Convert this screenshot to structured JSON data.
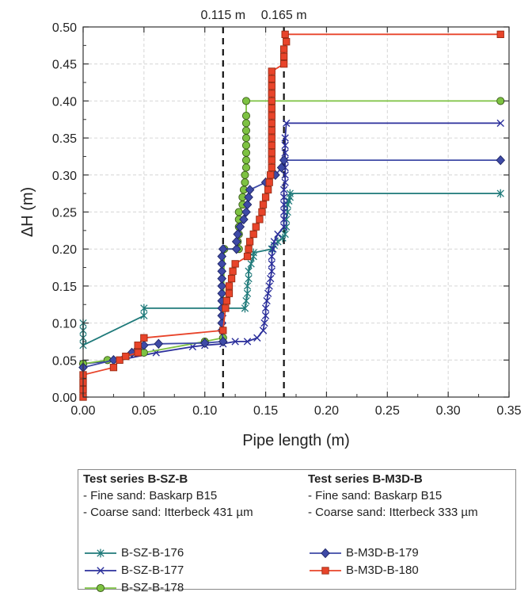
{
  "chart_data": {
    "type": "line",
    "xlabel": "Pipe length (m)",
    "ylabel": "ΔH (m)",
    "xlim": [
      0.0,
      0.35
    ],
    "ylim": [
      0.0,
      0.5
    ],
    "x_ticks": [
      "0.00",
      "0.05",
      "0.10",
      "0.15",
      "0.20",
      "0.25",
      "0.30",
      "0.35"
    ],
    "y_ticks": [
      "0.00",
      "0.05",
      "0.10",
      "0.15",
      "0.20",
      "0.25",
      "0.30",
      "0.35",
      "0.40",
      "0.45",
      "0.50"
    ],
    "grid": true,
    "reference_lines": [
      {
        "x": 0.115,
        "label": "0.115 m"
      },
      {
        "x": 0.165,
        "label": "0.165 m"
      }
    ],
    "series": [
      {
        "name": "B-SZ-B-176",
        "color": "#1f7a7a",
        "marker": "asterisk",
        "points": [
          [
            0,
            0.1
          ],
          [
            0,
            0.09
          ],
          [
            0,
            0.08
          ],
          [
            0,
            0.07
          ],
          [
            0.05,
            0.11
          ],
          [
            0.05,
            0.12
          ],
          [
            0.133,
            0.12
          ],
          [
            0.134,
            0.13
          ],
          [
            0.135,
            0.14
          ],
          [
            0.135,
            0.15
          ],
          [
            0.136,
            0.16
          ],
          [
            0.136,
            0.17
          ],
          [
            0.138,
            0.18
          ],
          [
            0.14,
            0.19
          ],
          [
            0.14,
            0.195
          ],
          [
            0.155,
            0.2
          ],
          [
            0.157,
            0.205
          ],
          [
            0.16,
            0.21
          ],
          [
            0.164,
            0.215
          ],
          [
            0.166,
            0.22
          ],
          [
            0.167,
            0.23
          ],
          [
            0.167,
            0.24
          ],
          [
            0.168,
            0.25
          ],
          [
            0.168,
            0.26
          ],
          [
            0.169,
            0.265
          ],
          [
            0.17,
            0.27
          ],
          [
            0.17,
            0.275
          ],
          [
            0.343,
            0.275
          ]
        ]
      },
      {
        "name": "B-SZ-B-177",
        "color": "#2b2f9b",
        "marker": "x",
        "points": [
          [
            0,
            0.045
          ],
          [
            0.03,
            0.05
          ],
          [
            0.06,
            0.06
          ],
          [
            0.09,
            0.068
          ],
          [
            0.1,
            0.07
          ],
          [
            0.115,
            0.072
          ],
          [
            0.125,
            0.075
          ],
          [
            0.135,
            0.075
          ],
          [
            0.143,
            0.08
          ],
          [
            0.148,
            0.09
          ],
          [
            0.149,
            0.1
          ],
          [
            0.15,
            0.11
          ],
          [
            0.15,
            0.12
          ],
          [
            0.151,
            0.13
          ],
          [
            0.152,
            0.14
          ],
          [
            0.153,
            0.15
          ],
          [
            0.154,
            0.16
          ],
          [
            0.155,
            0.17
          ],
          [
            0.155,
            0.18
          ],
          [
            0.155,
            0.19
          ],
          [
            0.156,
            0.2
          ],
          [
            0.157,
            0.21
          ],
          [
            0.16,
            0.22
          ],
          [
            0.165,
            0.23
          ],
          [
            0.165,
            0.24
          ],
          [
            0.165,
            0.25
          ],
          [
            0.165,
            0.26
          ],
          [
            0.165,
            0.27
          ],
          [
            0.165,
            0.28
          ],
          [
            0.166,
            0.29
          ],
          [
            0.166,
            0.3
          ],
          [
            0.166,
            0.31
          ],
          [
            0.166,
            0.32
          ],
          [
            0.166,
            0.33
          ],
          [
            0.166,
            0.34
          ],
          [
            0.166,
            0.35
          ],
          [
            0.167,
            0.37
          ],
          [
            0.343,
            0.37
          ]
        ]
      },
      {
        "name": "B-SZ-B-178",
        "color": "#7dc242",
        "marker": "circle",
        "points": [
          [
            0,
            0.045
          ],
          [
            0.02,
            0.05
          ],
          [
            0.05,
            0.06
          ],
          [
            0.1,
            0.075
          ],
          [
            0.115,
            0.08
          ],
          [
            0.116,
            0.2
          ],
          [
            0.128,
            0.2
          ],
          [
            0.127,
            0.21
          ],
          [
            0.128,
            0.22
          ],
          [
            0.128,
            0.23
          ],
          [
            0.128,
            0.24
          ],
          [
            0.128,
            0.25
          ],
          [
            0.131,
            0.26
          ],
          [
            0.131,
            0.27
          ],
          [
            0.132,
            0.28
          ],
          [
            0.133,
            0.29
          ],
          [
            0.133,
            0.3
          ],
          [
            0.134,
            0.31
          ],
          [
            0.134,
            0.32
          ],
          [
            0.134,
            0.33
          ],
          [
            0.134,
            0.34
          ],
          [
            0.134,
            0.35
          ],
          [
            0.134,
            0.36
          ],
          [
            0.134,
            0.37
          ],
          [
            0.134,
            0.38
          ],
          [
            0.134,
            0.4
          ],
          [
            0.343,
            0.4
          ]
        ]
      },
      {
        "name": "B-M3D-B-179",
        "color": "#3e4aa6",
        "marker": "diamond",
        "points": [
          [
            0,
            0.04
          ],
          [
            0.025,
            0.05
          ],
          [
            0.04,
            0.06
          ],
          [
            0.045,
            0.065
          ],
          [
            0.05,
            0.07
          ],
          [
            0.062,
            0.072
          ],
          [
            0.1,
            0.073
          ],
          [
            0.115,
            0.075
          ],
          [
            0.114,
            0.09
          ],
          [
            0.114,
            0.1
          ],
          [
            0.114,
            0.11
          ],
          [
            0.114,
            0.12
          ],
          [
            0.114,
            0.13
          ],
          [
            0.114,
            0.14
          ],
          [
            0.114,
            0.15
          ],
          [
            0.114,
            0.16
          ],
          [
            0.114,
            0.17
          ],
          [
            0.114,
            0.18
          ],
          [
            0.114,
            0.19
          ],
          [
            0.115,
            0.2
          ],
          [
            0.126,
            0.2
          ],
          [
            0.126,
            0.21
          ],
          [
            0.127,
            0.22
          ],
          [
            0.129,
            0.23
          ],
          [
            0.132,
            0.24
          ],
          [
            0.134,
            0.25
          ],
          [
            0.135,
            0.26
          ],
          [
            0.136,
            0.27
          ],
          [
            0.137,
            0.28
          ],
          [
            0.15,
            0.29
          ],
          [
            0.158,
            0.3
          ],
          [
            0.163,
            0.31
          ],
          [
            0.165,
            0.32
          ],
          [
            0.343,
            0.32
          ]
        ]
      },
      {
        "name": "B-M3D-B-180",
        "color": "#e8442a",
        "marker": "square",
        "points": [
          [
            0,
            0
          ],
          [
            0,
            0.01
          ],
          [
            0,
            0.02
          ],
          [
            0,
            0.03
          ],
          [
            0.025,
            0.04
          ],
          [
            0.03,
            0.05
          ],
          [
            0.035,
            0.055
          ],
          [
            0.045,
            0.06
          ],
          [
            0.045,
            0.07
          ],
          [
            0.05,
            0.08
          ],
          [
            0.115,
            0.09
          ],
          [
            0.117,
            0.12
          ],
          [
            0.118,
            0.13
          ],
          [
            0.12,
            0.14
          ],
          [
            0.12,
            0.15
          ],
          [
            0.122,
            0.16
          ],
          [
            0.123,
            0.17
          ],
          [
            0.125,
            0.18
          ],
          [
            0.135,
            0.19
          ],
          [
            0.136,
            0.2
          ],
          [
            0.137,
            0.21
          ],
          [
            0.14,
            0.22
          ],
          [
            0.142,
            0.23
          ],
          [
            0.145,
            0.24
          ],
          [
            0.147,
            0.25
          ],
          [
            0.148,
            0.26
          ],
          [
            0.15,
            0.27
          ],
          [
            0.152,
            0.28
          ],
          [
            0.153,
            0.29
          ],
          [
            0.154,
            0.3
          ],
          [
            0.155,
            0.31
          ],
          [
            0.155,
            0.32
          ],
          [
            0.155,
            0.33
          ],
          [
            0.155,
            0.34
          ],
          [
            0.155,
            0.35
          ],
          [
            0.155,
            0.36
          ],
          [
            0.155,
            0.37
          ],
          [
            0.155,
            0.38
          ],
          [
            0.155,
            0.39
          ],
          [
            0.155,
            0.4
          ],
          [
            0.155,
            0.41
          ],
          [
            0.155,
            0.42
          ],
          [
            0.155,
            0.43
          ],
          [
            0.155,
            0.44
          ],
          [
            0.165,
            0.45
          ],
          [
            0.165,
            0.46
          ],
          [
            0.165,
            0.47
          ],
          [
            0.167,
            0.48
          ],
          [
            0.166,
            0.49
          ],
          [
            0.343,
            0.49
          ]
        ]
      }
    ]
  },
  "legend": {
    "group1": {
      "title": "Test series B-SZ-B",
      "line1": "- Fine sand: Baskarp B15",
      "line2": "- Coarse sand: Itterbeck 431 µm"
    },
    "group2": {
      "title": "Test series B-M3D-B",
      "line1": "- Fine sand: Baskarp B15",
      "line2": "- Coarse sand: Itterbeck 333 µm"
    }
  }
}
